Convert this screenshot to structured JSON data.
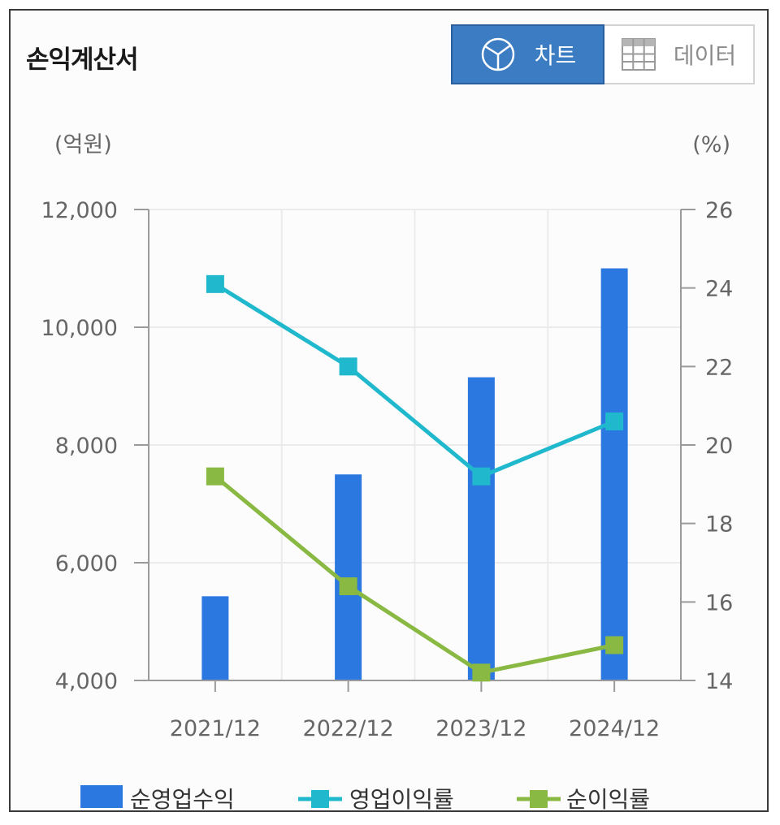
{
  "header": {
    "title": "손익계산서"
  },
  "toggle": {
    "chart_label": "차트",
    "chart_icon": "pie-chart-icon",
    "data_label": "데이터",
    "data_icon": "table-grid-icon",
    "active": "chart",
    "active_color": "#3b7cc3"
  },
  "chart_data": {
    "type": "bar",
    "categories": [
      "2021/12",
      "2022/12",
      "2023/12",
      "2024/12"
    ],
    "left_axis": {
      "unit": "(억원)",
      "ylim": [
        4000,
        12000
      ],
      "ticks": [
        "4,000",
        "6,000",
        "8,000",
        "10,000",
        "12,000"
      ]
    },
    "right_axis": {
      "unit": "(%)",
      "ylim": [
        14,
        26
      ],
      "ticks": [
        "14",
        "16",
        "18",
        "20",
        "22",
        "24",
        "26"
      ]
    },
    "series": [
      {
        "name": "순영업수익",
        "type": "bar",
        "axis": "left",
        "color": "#2b78e0",
        "values": [
          5430,
          7500,
          9150,
          11000
        ]
      },
      {
        "name": "영업이익률",
        "type": "line",
        "axis": "right",
        "color": "#20b8cc",
        "values": [
          24.1,
          22.0,
          19.2,
          20.6
        ]
      },
      {
        "name": "순이익률",
        "type": "line",
        "axis": "right",
        "color": "#8ab943",
        "values": [
          19.2,
          16.4,
          14.2,
          14.9
        ]
      }
    ],
    "grid": true,
    "legend_position": "bottom"
  }
}
